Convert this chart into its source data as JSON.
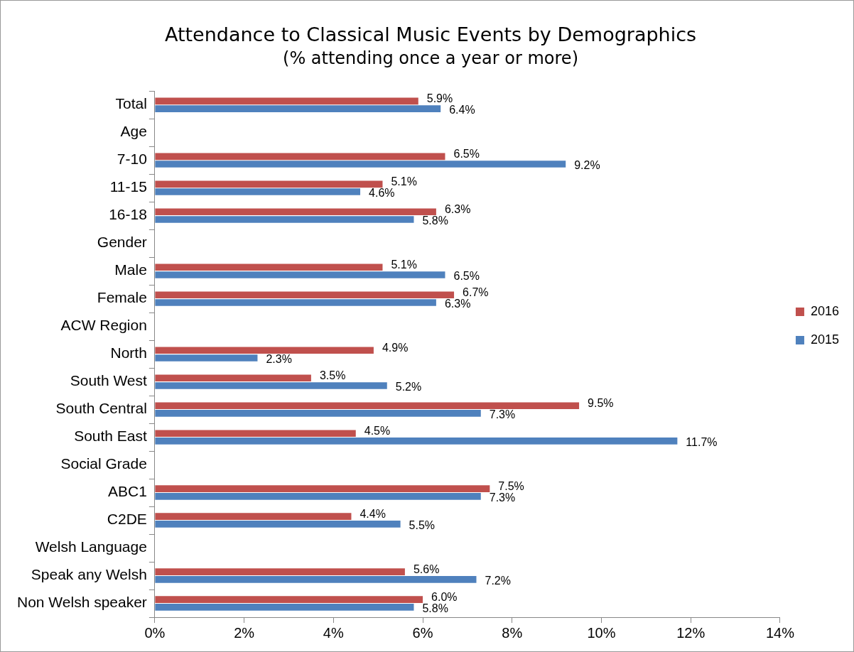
{
  "chart_data": {
    "type": "bar",
    "orientation": "horizontal",
    "title": "Attendance to Classical Music Events by Demographics",
    "subtitle": "(% attending once a year or more)",
    "categories": [
      "Total",
      "Age",
      "7-10",
      "11-15",
      "16-18",
      "Gender",
      "Male",
      "Female",
      "ACW Region",
      "North",
      "South West",
      "South Central",
      "South East",
      "Social Grade",
      "ABC1",
      "C2DE",
      "Welsh Language",
      "Speak any Welsh",
      "Non Welsh speaker"
    ],
    "series": [
      {
        "name": "2016",
        "color": "#c0504d",
        "values": [
          5.9,
          null,
          6.5,
          5.1,
          6.3,
          null,
          5.1,
          6.7,
          null,
          4.9,
          3.5,
          9.5,
          4.5,
          null,
          7.5,
          4.4,
          null,
          5.6,
          6.0
        ],
        "value_labels": [
          "5.9%",
          null,
          "6.5%",
          "5.1%",
          "6.3%",
          null,
          "5.1%",
          "6.7%",
          null,
          "4.9%",
          "3.5%",
          "9.5%",
          "4.5%",
          null,
          "7.5%",
          "4.4%",
          null,
          "5.6%",
          "6.0%"
        ]
      },
      {
        "name": "2015",
        "color": "#4f81bd",
        "values": [
          6.4,
          null,
          9.2,
          4.6,
          5.8,
          null,
          6.5,
          6.3,
          null,
          2.3,
          5.2,
          7.3,
          11.7,
          null,
          7.3,
          5.5,
          null,
          7.2,
          5.8
        ],
        "value_labels": [
          "6.4%",
          null,
          "9.2%",
          "4.6%",
          "5.8%",
          null,
          "6.5%",
          "6.3%",
          null,
          "2.3%",
          "5.2%",
          "7.3%",
          "11.7%",
          null,
          "7.3%",
          "5.5%",
          null,
          "7.2%",
          "5.8%"
        ]
      }
    ],
    "xlim": [
      0,
      14
    ],
    "xticks": [
      {
        "value": 0,
        "label": "0%"
      },
      {
        "value": 2,
        "label": "2%"
      },
      {
        "value": 4,
        "label": "4%"
      },
      {
        "value": 6,
        "label": "6%"
      },
      {
        "value": 8,
        "label": "8%"
      },
      {
        "value": 10,
        "label": "10%"
      },
      {
        "value": 12,
        "label": "12%"
      },
      {
        "value": 14,
        "label": "14%"
      }
    ],
    "grid": false,
    "legend": "right"
  }
}
